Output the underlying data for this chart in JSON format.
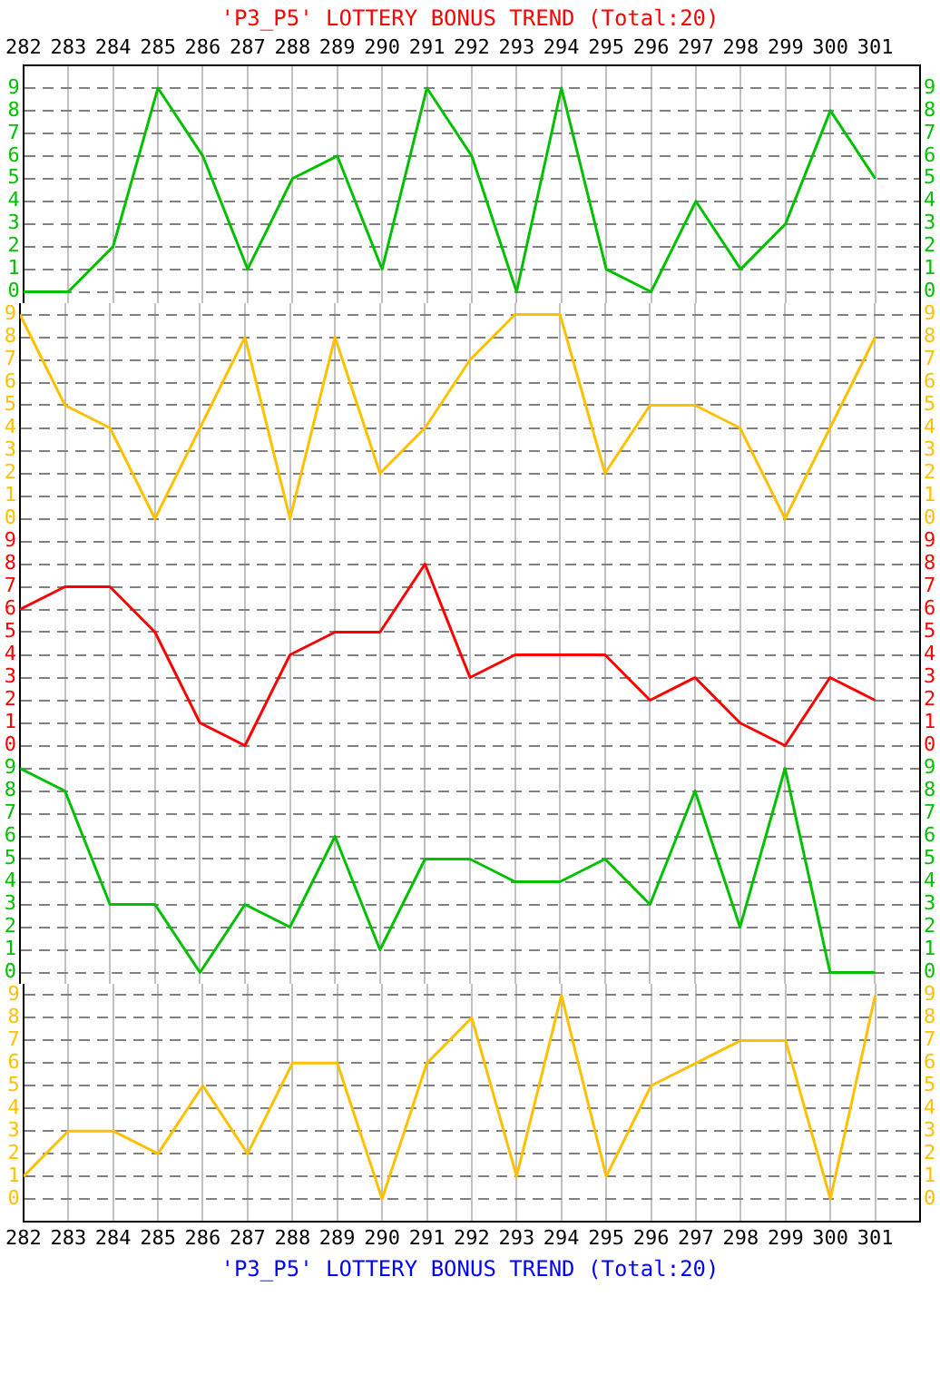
{
  "chart_data": [
    {
      "type": "line",
      "title": "'P3_P5' LOTTERY BONUS TREND (Total:20)",
      "x": [
        282,
        283,
        284,
        285,
        286,
        287,
        288,
        289,
        290,
        291,
        292,
        293,
        294,
        295,
        296,
        297,
        298,
        299,
        300,
        301
      ],
      "series": [
        {
          "color": "#00c000",
          "values": [
            0,
            0,
            2,
            9,
            6,
            1,
            5,
            6,
            1,
            9,
            6,
            0,
            9,
            1,
            0,
            4,
            1,
            3,
            8,
            5
          ]
        }
      ],
      "xlim": [
        282,
        302
      ],
      "xticks": [
        282,
        283,
        284,
        285,
        286,
        287,
        288,
        289,
        290,
        291,
        292,
        293,
        294,
        295,
        296,
        297,
        298,
        299,
        300,
        301
      ],
      "ylim": [
        -0.5,
        10
      ],
      "yticks": [
        0,
        1,
        2,
        3,
        4,
        5,
        6,
        7,
        8,
        9
      ],
      "y2lim": [
        -0.5,
        10
      ],
      "y2ticks": [
        0,
        1,
        2,
        3,
        4,
        5,
        6,
        7,
        8,
        9
      ],
      "grid": true,
      "legend": false
    },
    {
      "type": "line",
      "x": [
        282,
        283,
        284,
        285,
        286,
        287,
        288,
        289,
        290,
        291,
        292,
        293,
        294,
        295,
        296,
        297,
        298,
        299,
        300,
        301
      ],
      "series": [
        {
          "color": "#ffc000",
          "values": [
            9,
            5,
            4,
            0,
            4,
            8,
            0,
            8,
            2,
            4,
            7,
            9,
            9,
            2,
            5,
            5,
            4,
            0,
            4,
            8
          ]
        }
      ],
      "xlim": [
        282,
        302
      ],
      "xticks": [
        282,
        283,
        284,
        285,
        286,
        287,
        288,
        289,
        290,
        291,
        292,
        293,
        294,
        295,
        296,
        297,
        298,
        299,
        300,
        301
      ],
      "ylim": [
        -0.5,
        9.5
      ],
      "yticks": [
        0,
        1,
        2,
        3,
        4,
        5,
        6,
        7,
        8,
        9
      ],
      "y2lim": [
        -0.5,
        9.5
      ],
      "y2ticks": [
        0,
        1,
        2,
        3,
        4,
        5,
        6,
        7,
        8,
        9
      ],
      "grid": true,
      "legend": false,
      "tick_labels": "y"
    },
    {
      "type": "line",
      "x": [
        282,
        283,
        284,
        285,
        286,
        287,
        288,
        289,
        290,
        291,
        292,
        293,
        294,
        295,
        296,
        297,
        298,
        299,
        300,
        301
      ],
      "series": [
        {
          "color": "#ff0000",
          "values": [
            6,
            7,
            7,
            5,
            1,
            0,
            4,
            5,
            5,
            8,
            3,
            4,
            4,
            4,
            2,
            3,
            1,
            0,
            3,
            2
          ]
        }
      ],
      "xlim": [
        282,
        302
      ],
      "xticks": [
        282,
        283,
        284,
        285,
        286,
        287,
        288,
        289,
        290,
        291,
        292,
        293,
        294,
        295,
        296,
        297,
        298,
        299,
        300,
        301
      ],
      "ylim": [
        -0.5,
        9.5
      ],
      "yticks": [
        0,
        1,
        2,
        3,
        4,
        5,
        6,
        7,
        8,
        9
      ],
      "y2lim": [
        -0.5,
        9.5
      ],
      "y2ticks": [
        0,
        1,
        2,
        3,
        4,
        5,
        6,
        7,
        8,
        9
      ],
      "grid": true,
      "legend": false,
      "tick_labels": "y"
    },
    {
      "type": "line",
      "x": [
        282,
        283,
        284,
        285,
        286,
        287,
        288,
        289,
        290,
        291,
        292,
        293,
        294,
        295,
        296,
        297,
        298,
        299,
        300,
        301
      ],
      "series": [
        {
          "color": "#00c000",
          "values": [
            9,
            8,
            3,
            3,
            0,
            3,
            2,
            6,
            1,
            5,
            5,
            4,
            4,
            5,
            3,
            8,
            2,
            9,
            0,
            0
          ]
        }
      ],
      "xlim": [
        282,
        302
      ],
      "xticks": [
        282,
        283,
        284,
        285,
        286,
        287,
        288,
        289,
        290,
        291,
        292,
        293,
        294,
        295,
        296,
        297,
        298,
        299,
        300,
        301
      ],
      "ylim": [
        -0.5,
        9.5
      ],
      "yticks": [
        0,
        1,
        2,
        3,
        4,
        5,
        6,
        7,
        8,
        9
      ],
      "y2lim": [
        -0.5,
        9.5
      ],
      "y2ticks": [
        0,
        1,
        2,
        3,
        4,
        5,
        6,
        7,
        8,
        9
      ],
      "grid": true,
      "legend": false,
      "tick_labels": "y"
    },
    {
      "type": "line",
      "x": [
        282,
        283,
        284,
        285,
        286,
        287,
        288,
        289,
        290,
        291,
        292,
        293,
        294,
        295,
        296,
        297,
        298,
        299,
        300,
        301
      ],
      "series": [
        {
          "color": "#ffc000",
          "values": [
            1,
            3,
            3,
            2,
            5,
            2,
            6,
            6,
            0,
            6,
            8,
            1,
            9,
            1,
            5,
            6,
            7,
            7,
            0,
            9
          ]
        }
      ],
      "xlim": [
        282,
        302
      ],
      "xticks": [
        282,
        283,
        284,
        285,
        286,
        287,
        288,
        289,
        290,
        291,
        292,
        293,
        294,
        295,
        296,
        297,
        298,
        299,
        300,
        301
      ],
      "ylim": [
        -1,
        9.5
      ],
      "yticks": [
        0,
        1,
        2,
        3,
        4,
        5,
        6,
        7,
        8,
        9
      ],
      "y2lim": [
        -1,
        9.5
      ],
      "y2ticks": [
        0,
        1,
        2,
        3,
        4,
        5,
        6,
        7,
        8,
        9
      ],
      "grid": true,
      "legend": false,
      "annotations": [
        "'P3_P5' LOTTERY BONUS TREND (Total:20)"
      ]
    }
  ]
}
